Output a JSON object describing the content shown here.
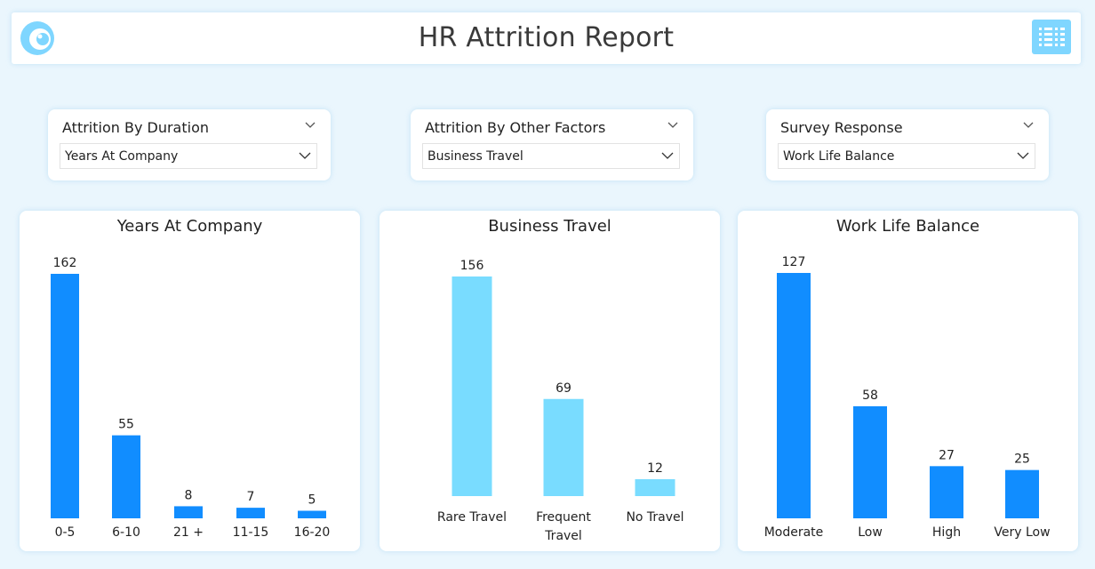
{
  "header": {
    "title": "HR Attrition Report",
    "logo_icon": "logo-icon",
    "menu_icon": "menu-grid-icon",
    "accent_color": "#7fd6ff"
  },
  "slicers": [
    {
      "label": "Attrition By Duration",
      "value": "Years At Company"
    },
    {
      "label": "Attrition By Other Factors",
      "value": "Business Travel"
    },
    {
      "label": "Survey Response",
      "value": "Work Life Balance"
    }
  ],
  "chart_data": [
    {
      "type": "bar",
      "title": "Years At Company",
      "categories": [
        "0-5",
        "6-10",
        "21 +",
        "11-15",
        "16-20"
      ],
      "values": [
        162,
        55,
        8,
        7,
        5
      ],
      "color": "#118dff"
    },
    {
      "type": "bar",
      "title": "Business Travel",
      "categories": [
        "Rare Travel",
        "Frequent Travel",
        "No Travel"
      ],
      "values": [
        156,
        69,
        12
      ],
      "color": "#79dcff"
    },
    {
      "type": "bar",
      "title": "Work Life Balance",
      "categories": [
        "Moderate",
        "Low",
        "High",
        "Very Low"
      ],
      "values": [
        127,
        58,
        27,
        25
      ],
      "color": "#118dff"
    }
  ]
}
